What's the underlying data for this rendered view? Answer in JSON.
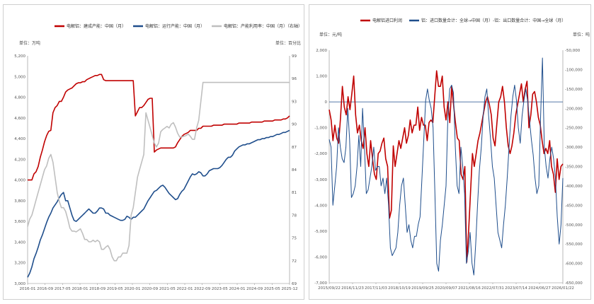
{
  "chart_data": [
    {
      "type": "line",
      "legend": [
        {
          "name": "电解铝：建成产能：中国（月）",
          "color": "#c00000",
          "axis": "left"
        },
        {
          "name": "电解铝：运行产能：中国（月）",
          "color": "#1f4e8c",
          "axis": "left"
        },
        {
          "name": "电解铝：产能利用率：中国（月）（右轴）",
          "color": "#bfbfbf",
          "axis": "right"
        }
      ],
      "left_unit": "单位：万吨",
      "right_unit": "单位：百分比",
      "left_ylim": [
        3000,
        5200
      ],
      "left_ticks": [
        "3,000",
        "3,200",
        "3,400",
        "3,600",
        "3,800",
        "4,000",
        "4,200",
        "4,400",
        "4,600",
        "4,800",
        "5,000",
        "5,200"
      ],
      "right_ylim": [
        69,
        99
      ],
      "right_ticks": [
        "69",
        "72",
        "75",
        "78",
        "81",
        "84",
        "87",
        "90",
        "93",
        "96",
        "99"
      ],
      "x_ticks": [
        "2016-01",
        "2016-09",
        "2017-05",
        "2018-01",
        "2018-09",
        "2019-05",
        "2020-01",
        "2020-09",
        "2021-05",
        "2022-01",
        "2022-09",
        "2023-05",
        "2024-01",
        "2024-09",
        "2025-05",
        "2025-12"
      ],
      "series": [
        {
          "name": "建成产能",
          "color": "#c00000",
          "axis": "left",
          "values": [
            4000,
            4000,
            4000,
            4060,
            4080,
            4130,
            4220,
            4290,
            4370,
            4430,
            4470,
            4480,
            4650,
            4700,
            4720,
            4760,
            4760,
            4800,
            4850,
            4870,
            4880,
            4890,
            4910,
            4930,
            4940,
            4940,
            4950,
            4950,
            4970,
            4980,
            4990,
            5000,
            5010,
            5010,
            5020,
            5020,
            4970,
            4960,
            4960,
            4960,
            4960,
            4960,
            4960,
            4960,
            4960,
            4960,
            4960,
            4960,
            4960,
            4960,
            4960,
            4620,
            4660,
            4700,
            4700,
            4720,
            4750,
            4780,
            4790,
            4790,
            4270,
            4290,
            4300,
            4310,
            4310,
            4310,
            4310,
            4310,
            4310,
            4310,
            4320,
            4360,
            4390,
            4420,
            4440,
            4450,
            4460,
            4480,
            4480,
            4480,
            4480,
            4500,
            4500,
            4520,
            4520,
            4520,
            4520,
            4520,
            4530,
            4530,
            4530,
            4530,
            4530,
            4540,
            4540,
            4540,
            4540,
            4540,
            4540,
            4540,
            4550,
            4550,
            4550,
            4550,
            4550,
            4550,
            4560,
            4560,
            4560,
            4560,
            4560,
            4560,
            4570,
            4570,
            4570,
            4570,
            4570,
            4580,
            4580,
            4580,
            4580,
            4590,
            4590,
            4600,
            4620
          ]
        },
        {
          "name": "运行产能",
          "color": "#1f4e8c",
          "axis": "left",
          "values": [
            3060,
            3100,
            3160,
            3240,
            3290,
            3350,
            3420,
            3470,
            3530,
            3590,
            3640,
            3680,
            3730,
            3760,
            3790,
            3830,
            3860,
            3880,
            3800,
            3800,
            3730,
            3660,
            3610,
            3600,
            3620,
            3640,
            3660,
            3680,
            3700,
            3720,
            3700,
            3680,
            3680,
            3700,
            3730,
            3730,
            3720,
            3680,
            3680,
            3660,
            3650,
            3640,
            3630,
            3620,
            3610,
            3610,
            3620,
            3650,
            3640,
            3620,
            3640,
            3640,
            3660,
            3680,
            3700,
            3720,
            3760,
            3800,
            3830,
            3860,
            3890,
            3900,
            3920,
            3940,
            3950,
            3930,
            3900,
            3870,
            3850,
            3830,
            3810,
            3820,
            3860,
            3890,
            3910,
            3950,
            3990,
            4030,
            4060,
            4050,
            4060,
            4080,
            4070,
            4040,
            4040,
            4060,
            4090,
            4100,
            4110,
            4110,
            4110,
            4120,
            4140,
            4170,
            4200,
            4220,
            4220,
            4240,
            4280,
            4300,
            4320,
            4330,
            4340,
            4340,
            4350,
            4350,
            4360,
            4370,
            4380,
            4390,
            4390,
            4400,
            4400,
            4410,
            4410,
            4420,
            4420,
            4430,
            4440,
            4440,
            4450,
            4460,
            4460,
            4470,
            4480
          ]
        },
        {
          "name": "产能利用率",
          "color": "#bfbfbf",
          "axis": "right",
          "values": [
            76.5,
            77.5,
            78,
            79,
            80,
            81,
            82,
            83,
            84,
            84.5,
            85.5,
            86,
            85,
            83,
            81,
            79.8,
            79,
            79,
            78.5,
            77.5,
            76.3,
            75.9,
            75.9,
            75.8,
            76,
            76.2,
            75.6,
            74.8,
            74.8,
            74.5,
            74.5,
            74.7,
            74.5,
            74.7,
            74.5,
            73.5,
            73.5,
            73.8,
            74,
            73.5,
            72.5,
            72,
            72,
            72.5,
            72.5,
            73,
            73,
            73,
            74,
            78,
            79,
            81,
            83,
            84,
            85,
            86,
            91.5,
            90.5,
            89.5,
            88.5,
            87.5,
            87,
            87.5,
            89,
            89.3,
            89.5,
            89.7,
            89.5,
            90,
            90.2,
            89.6,
            88.8,
            88.3,
            88.3,
            88.4,
            88.5,
            88.7,
            88.4,
            88,
            88,
            89.5,
            90.5,
            93,
            95.5,
            95.5,
            95.5,
            95.5,
            95.5,
            95.5,
            95.5,
            95.5,
            95.5,
            95.5,
            95.5,
            95.5,
            95.5,
            95.5,
            95.5,
            95.5,
            95.5,
            95.5,
            95.5,
            95.5,
            95.5,
            95.5,
            95.5,
            95.5,
            95.5,
            95.5,
            95.5,
            95.5,
            95.5,
            95.5,
            95.5,
            95.5,
            95.5,
            95.5,
            95.5,
            95.5,
            95.5,
            95.5,
            95.5,
            95.5,
            95.5,
            95.5
          ]
        }
      ]
    },
    {
      "type": "line",
      "legend": [
        {
          "name": "电解铝进口利润",
          "color": "#c00000",
          "axis": "left"
        },
        {
          "name": "铝：进口数量合计：全球→中国（月）-铝：出口数量合计：中国→全球（月）",
          "color": "#1f4e8c",
          "axis": "right"
        }
      ],
      "left_unit": "单位：元/吨",
      "right_unit": "单位：吨",
      "left_ylim": [
        -7000,
        2000
      ],
      "left_ticks": [
        "2,000",
        "1,000",
        "0",
        "-1,000",
        "-2,000",
        "-3,000",
        "-4,000",
        "-5,000",
        "-6,000",
        "-7,000"
      ],
      "right_ylim": [
        -650000,
        -50000
      ],
      "right_ticks": [
        "-50,000",
        "-100,000",
        "-150,000",
        "-200,000",
        "-250,000",
        "-300,000",
        "-350,000",
        "-400,000",
        "-450,000",
        "-500,000",
        "-550,000",
        "-600,000",
        "-650,000"
      ],
      "x_ticks": [
        "2015/09/22",
        "2016/11/23",
        "2017/11/03",
        "2018/10/19",
        "2019/09/25",
        "2020/09/07",
        "2021/08/16",
        "2022/07/31",
        "2023/07/14",
        "2024/06/27",
        "2026/01/22"
      ],
      "series": [
        {
          "name": "电解铝进口利润",
          "color": "#c00000",
          "axis": "left",
          "values": [
            -300,
            -700,
            -1500,
            -900,
            -1400,
            -1600,
            -600,
            600,
            -200,
            -500,
            200,
            -300,
            300,
            1000,
            -500,
            -1200,
            -900,
            -1500,
            -1800,
            -1000,
            -2000,
            -2500,
            -1500,
            -2200,
            -2800,
            -3000,
            -2000,
            -1900,
            -1600,
            -1400,
            -2200,
            -2500,
            -4500,
            -4200,
            -1700,
            -2500,
            -2000,
            -1500,
            -1800,
            -1400,
            -1000,
            -1600,
            -1300,
            -700,
            -1200,
            -900,
            -900,
            -200,
            -1100,
            -600,
            -900,
            -900,
            -1500,
            -800,
            -700,
            -800,
            200,
            1200,
            600,
            600,
            1000,
            -200,
            -700,
            0,
            -800,
            600,
            -100,
            -800,
            -1400,
            -1500,
            -2800,
            -3000,
            -2500,
            -6200,
            -5000,
            -3500,
            -2000,
            -2500,
            -2000,
            -1500,
            -1200,
            -800,
            -400,
            0,
            200,
            -100,
            -500,
            -1400,
            -1700,
            -800,
            0,
            200,
            600,
            0,
            -1000,
            -1700,
            -2000,
            -1700,
            -1200,
            -500,
            -100,
            300,
            700,
            0,
            500,
            800,
            -1000,
            -500,
            300,
            400,
            0,
            -600,
            -900,
            -1500,
            -2000,
            -1800,
            -2000,
            -1500,
            -2500,
            -2800,
            -3500,
            -2200,
            -3000,
            -2500,
            -2400
          ]
        },
        {
          "name": "铝：进口-出口",
          "color": "#1f4e8c",
          "axis": "right",
          "values": [
            -280000,
            -300000,
            -450000,
            -400000,
            -350000,
            -250000,
            -300000,
            -330000,
            -340000,
            -300000,
            -200000,
            -280000,
            -430000,
            -420000,
            -400000,
            -350000,
            -270000,
            -350000,
            -200000,
            -300000,
            -420000,
            -410000,
            -380000,
            -350000,
            -300000,
            -360000,
            -350000,
            -350000,
            -400000,
            -380000,
            -420000,
            -380000,
            -450000,
            -560000,
            -580000,
            -570000,
            -560000,
            -520000,
            -450000,
            -400000,
            -380000,
            -450000,
            -520000,
            -500000,
            -540000,
            -560000,
            -530000,
            -530000,
            -500000,
            -480000,
            -380000,
            -280000,
            -180000,
            -150000,
            -180000,
            -200000,
            -250000,
            -420000,
            -600000,
            -620000,
            -540000,
            -500000,
            -450000,
            -400000,
            -220000,
            -150000,
            -140000,
            -160000,
            -300000,
            -400000,
            -420000,
            -300000,
            -350000,
            -420000,
            -600000,
            -570000,
            -520000,
            -600000,
            -630000,
            -550000,
            -450000,
            -360000,
            -300000,
            -220000,
            -170000,
            -150000,
            -220000,
            -280000,
            -350000,
            -380000,
            -450000,
            -520000,
            -540000,
            -560000,
            -500000,
            -450000,
            -380000,
            -300000,
            -220000,
            -170000,
            -140000,
            -180000,
            -250000,
            -290000,
            -220000,
            -180000,
            -150000,
            -180000,
            -230000,
            -280000,
            -320000,
            -380000,
            -420000,
            -400000,
            -220000,
            -70000,
            -300000,
            -350000,
            -380000,
            -330000,
            -300000,
            -330000,
            -380000,
            -480000,
            -550000,
            -500000,
            -380000
          ]
        }
      ]
    }
  ]
}
